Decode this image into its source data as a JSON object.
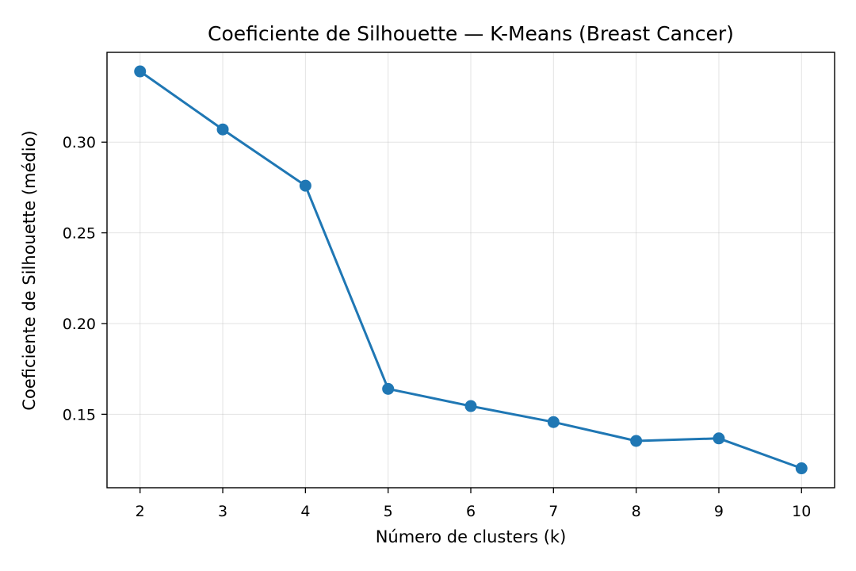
{
  "chart_data": {
    "type": "line",
    "title": "Coeficiente de Silhouette — K-Means (Breast Cancer)",
    "xlabel": "Número de clusters (k)",
    "ylabel": "Coeficiente de Silhouette (médio)",
    "x": [
      2,
      3,
      4,
      5,
      6,
      7,
      8,
      9,
      10
    ],
    "series": [
      {
        "values": [
          0.339,
          0.307,
          0.276,
          0.164,
          0.1545,
          0.1457,
          0.1353,
          0.1367,
          0.1202
        ]
      }
    ],
    "xlim": [
      1.6,
      10.4
    ],
    "ylim": [
      0.1095,
      0.3495
    ],
    "xticks": [
      "2",
      "3",
      "4",
      "5",
      "6",
      "7",
      "8",
      "9",
      "10"
    ],
    "yticks": [
      "0.15",
      "0.20",
      "0.25",
      "0.30"
    ],
    "ytick_values": [
      0.15,
      0.2,
      0.25,
      0.3
    ],
    "grid": true,
    "line_color": "#1f77b4",
    "marker": "circle"
  }
}
